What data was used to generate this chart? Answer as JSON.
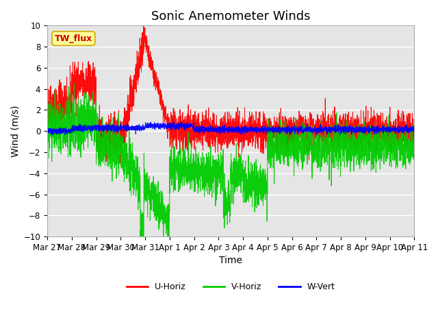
{
  "title": "Sonic Anemometer Winds",
  "xlabel": "Time",
  "ylabel": "Wind (m/s)",
  "ylim": [
    -10,
    10
  ],
  "yticks": [
    -10,
    -8,
    -6,
    -4,
    -2,
    0,
    2,
    4,
    6,
    8,
    10
  ],
  "xtick_labels": [
    "Mar 27",
    "Mar 28",
    "Mar 29",
    "Mar 30",
    "Mar 31",
    "Apr 1",
    "Apr 2",
    "Apr 3",
    "Apr 4",
    "Apr 5",
    "Apr 6",
    "Apr 7",
    "Apr 8",
    "Apr 9",
    "Apr 10",
    "Apr 11"
  ],
  "legend_labels": [
    "U-Horiz",
    "V-Horiz",
    "W-Vert"
  ],
  "colors": {
    "U": "#ff0000",
    "V": "#00cc00",
    "W": "#0000ff"
  },
  "annotation_text": "TW_flux",
  "annotation_box_color": "#ffff99",
  "annotation_box_edge": "#ccaa00",
  "background_color": "#e5e5e5",
  "grid_color": "#ffffff",
  "title_fontsize": 13,
  "axis_label_fontsize": 10,
  "tick_fontsize": 8.5,
  "legend_fontsize": 9,
  "n_points": 3360
}
